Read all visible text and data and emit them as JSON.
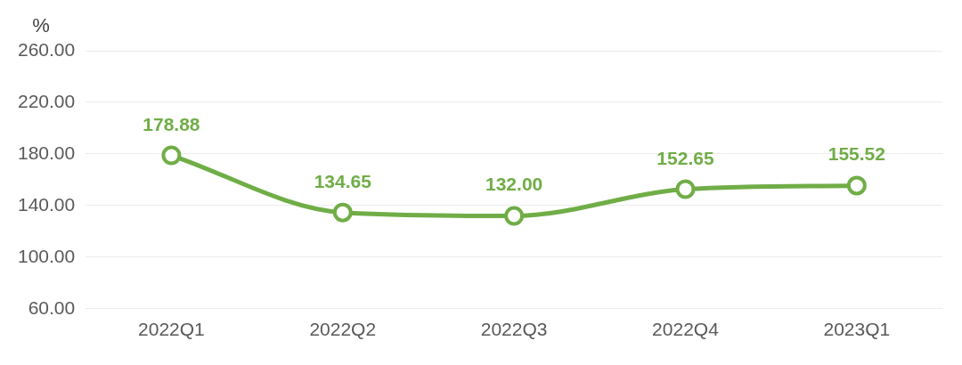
{
  "chart_data": {
    "type": "line",
    "ylabel": "%",
    "categories": [
      "2022Q1",
      "2022Q2",
      "2022Q3",
      "2022Q4",
      "2023Q1"
    ],
    "series": [
      {
        "color": "#70ad47",
        "values": [
          178.88,
          134.65,
          132.0,
          152.65,
          155.52
        ]
      }
    ],
    "ylim": [
      60,
      260
    ],
    "yticks": [
      {
        "value": 60,
        "label": "60.00"
      },
      {
        "value": 100,
        "label": "100.00"
      },
      {
        "value": 140,
        "label": "140.00"
      },
      {
        "value": 180,
        "label": "180.00"
      },
      {
        "value": 220,
        "label": "220.00"
      },
      {
        "value": 260,
        "label": "260.00"
      }
    ],
    "grid": "y",
    "legend": false,
    "marker": "circle",
    "line_style": "solid",
    "value_labels": [
      "178.88",
      "134.65",
      "132.00",
      "152.65",
      "155.52"
    ]
  }
}
